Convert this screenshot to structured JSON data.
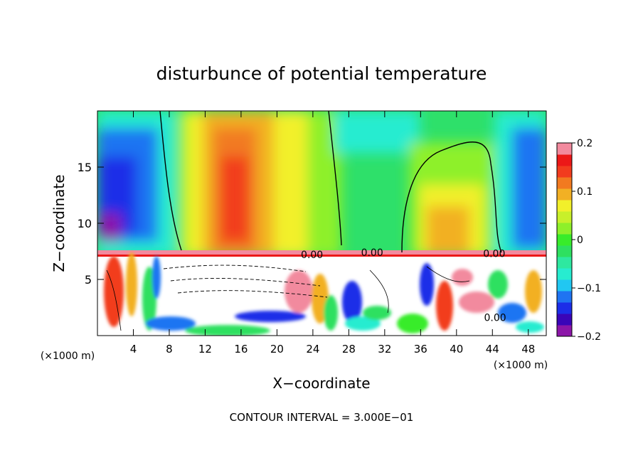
{
  "chart_data": {
    "type": "heatmap",
    "title": "disturbunce of potential temperature",
    "xlabel": "X−coordinate",
    "ylabel": "Z−coordinate",
    "x_unit_left": "(×1000 m)",
    "x_unit_right": "(×1000 m)",
    "xlim": [
      0,
      50
    ],
    "ylim": [
      0,
      20
    ],
    "x_ticks": [
      4,
      8,
      12,
      16,
      20,
      24,
      28,
      32,
      36,
      40,
      44,
      48
    ],
    "x_tick_labels": [
      "4",
      "8",
      "12",
      "16",
      "20",
      "24",
      "28",
      "32",
      "36",
      "40",
      "44",
      "48"
    ],
    "y_ticks": [
      5,
      10,
      15
    ],
    "y_tick_labels": [
      "5",
      "10",
      "15"
    ],
    "colorbar": {
      "range": [
        -0.2,
        0.2
      ],
      "tick_values": [
        0.2,
        0.1,
        0,
        -0.1,
        -0.2
      ],
      "tick_labels": [
        "0.2",
        "0.1",
        "0",
        "−0.1",
        "−0.2"
      ],
      "colors": [
        "#8c16a8",
        "#3a05b8",
        "#1c2ee8",
        "#1f74f2",
        "#21c7f2",
        "#27ecd0",
        "#2ee8a0",
        "#2ee060",
        "#38ec2a",
        "#8ef02a",
        "#c8f02a",
        "#f2f02a",
        "#f2b024",
        "#f27a20",
        "#f23c1e",
        "#ec1818",
        "#f28a9e"
      ]
    },
    "contour_labels": [
      {
        "text": "0.00",
        "x": 23.9,
        "z": 7.2
      },
      {
        "text": "0.00",
        "x": 30.6,
        "z": 7.4
      },
      {
        "text": "0.00",
        "x": 44.2,
        "z": 7.3
      },
      {
        "text": "0.00",
        "x": 44.3,
        "z": 1.6
      }
    ],
    "footer": "CONTOUR INTERVAL = 3.000E−01"
  }
}
